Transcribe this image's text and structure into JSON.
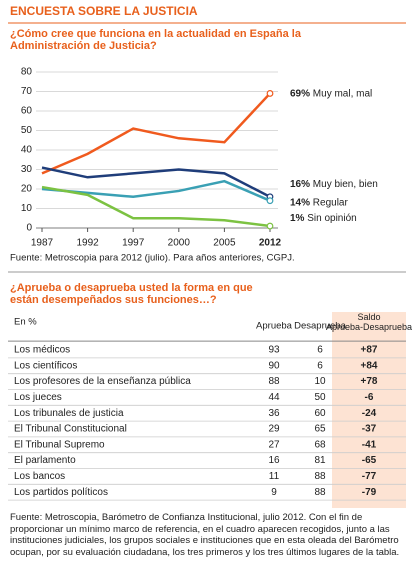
{
  "header": {
    "title": "ENCUESTA SOBRE LA JUSTICIA"
  },
  "chart_data": {
    "type": "line",
    "title": "¿Cómo  cree que funciona en la actualidad en España la Administración de Justicia?",
    "categories": [
      "1987",
      "1992",
      "1997",
      "2000",
      "2005",
      "2012"
    ],
    "series": [
      {
        "name": "Muy mal, mal",
        "color": "#f05a1e",
        "values": [
          28,
          38,
          51,
          46,
          44,
          69
        ],
        "value_labels": [
          null,
          null,
          null,
          null,
          null,
          "69%"
        ]
      },
      {
        "name": "Muy bien, bien",
        "color": "#1f3d7a",
        "values": [
          31,
          26,
          28,
          30,
          28,
          16
        ],
        "value_labels": [
          null,
          null,
          null,
          null,
          null,
          "16%"
        ]
      },
      {
        "name": "Regular",
        "color": "#3aa0b4",
        "values": [
          20,
          18,
          16,
          19,
          24,
          14
        ],
        "value_labels": [
          null,
          null,
          null,
          null,
          null,
          "14%"
        ]
      },
      {
        "name": "Sin opinión",
        "color": "#7cc242",
        "values": [
          21,
          17,
          5,
          5,
          4,
          1
        ],
        "value_labels": [
          null,
          null,
          null,
          null,
          null,
          "1%"
        ]
      }
    ],
    "ylim": [
      0,
      80
    ],
    "yticks": [
      0,
      10,
      20,
      30,
      40,
      50,
      60,
      70,
      80
    ],
    "grid": true,
    "source": "Fuente: Metroscopia para 2012 (julio). Para años anteriores, CGPJ."
  },
  "table": {
    "title": "¿Aprueba o desaprueba usted la forma en que están desempeñados sus funciones…?",
    "columns": [
      "En %",
      "Aprueba",
      "Desaprueba",
      "Saldo Aprueba-Desaprueba"
    ],
    "rows": [
      [
        "Los médicos",
        93,
        6,
        "+87"
      ],
      [
        "Los científicos",
        90,
        6,
        "+84"
      ],
      [
        "Los profesores de la enseñanza pública",
        88,
        10,
        "+78"
      ],
      [
        "Los jueces",
        44,
        50,
        "-6"
      ],
      [
        "Los tribunales de justicia",
        36,
        60,
        "-24"
      ],
      [
        "El Tribunal Constitucional",
        29,
        65,
        "-37"
      ],
      [
        "El Tribunal Supremo",
        27,
        68,
        "-41"
      ],
      [
        "El parlamento",
        16,
        81,
        "-65"
      ],
      [
        "Los bancos",
        11,
        88,
        "-77"
      ],
      [
        "Los partidos políticos",
        9,
        88,
        "-79"
      ]
    ]
  },
  "footnote": "Fuente: Metroscopia, Barómetro de Confianza Institucional, julio 2012. Con el fin de proporcionar un mínimo marco de referencia, en el cuadro aparecen recogidos, junto a las instituciones judiciales, los grupos sociales e instituciones que en esta oleada del Barómetro ocupan, por su evaluación ciudadana, los tres primeros y los tres últimos lugares de la tabla."
}
